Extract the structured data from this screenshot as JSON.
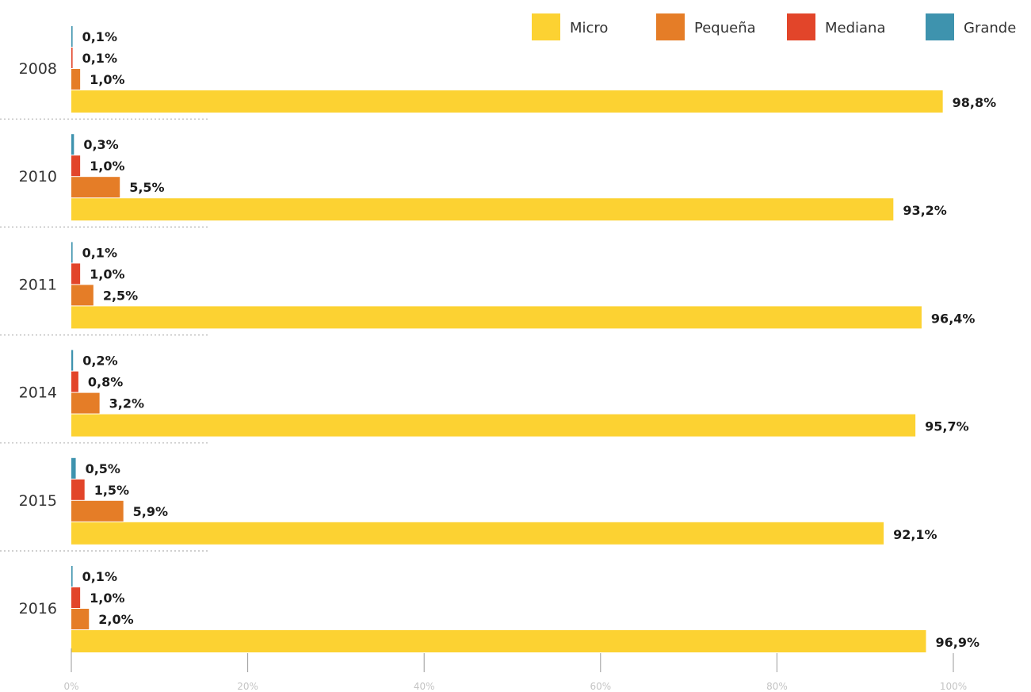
{
  "chart_data": {
    "type": "bar",
    "orientation": "horizontal",
    "categories": [
      "2008",
      "2010",
      "2011",
      "2014",
      "2015",
      "2016"
    ],
    "series": [
      {
        "name": "Grande",
        "color": "#3e93ae",
        "values": [
          0.1,
          0.3,
          0.1,
          0.2,
          0.5,
          0.1
        ],
        "labels": [
          "0,1%",
          "0,3%",
          "0,1%",
          "0,2%",
          "0,5%",
          "0,1%"
        ]
      },
      {
        "name": "Mediana",
        "color": "#e2452a",
        "values": [
          0.1,
          1.0,
          1.0,
          0.8,
          1.5,
          1.0
        ],
        "labels": [
          "0,1%",
          "1,0%",
          "1,0%",
          "0,8%",
          "1,5%",
          "1,0%"
        ]
      },
      {
        "name": "Pequeña",
        "color": "#e57d27",
        "values": [
          1.0,
          5.5,
          2.5,
          3.2,
          5.9,
          2.0
        ],
        "labels": [
          "1,0%",
          "5,5%",
          "2,5%",
          "3,2%",
          "5,9%",
          "2,0%"
        ]
      },
      {
        "name": "Micro",
        "color": "#fcd232",
        "values": [
          98.8,
          93.2,
          96.4,
          95.7,
          92.1,
          96.9
        ],
        "labels": [
          "98,8%",
          "93,2%",
          "96,4%",
          "95,7%",
          "92,1%",
          "96,9%"
        ]
      }
    ],
    "legend": {
      "position": "top-right",
      "order": [
        "Micro",
        "Pequeña",
        "Mediana",
        "Grande"
      ]
    },
    "x_ticks": [
      "0%",
      "20%",
      "40%",
      "60%",
      "80%",
      "100%"
    ],
    "xlim": [
      0,
      100
    ],
    "grid": false
  }
}
